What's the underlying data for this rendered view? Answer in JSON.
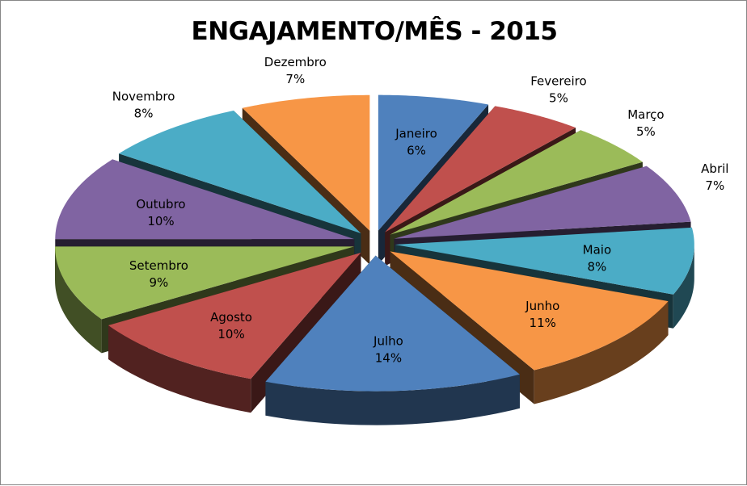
{
  "chart_data": {
    "type": "pie",
    "title": "ENGAJAMENTO/MÊS - 2015",
    "categories": [
      "Janeiro",
      "Fevereiro",
      "Março",
      "Abril",
      "Maio",
      "Junho",
      "Julho",
      "Agosto",
      "Setembro",
      "Outubro",
      "Novembro",
      "Dezembro"
    ],
    "values": [
      6,
      5,
      5,
      7,
      8,
      11,
      14,
      10,
      9,
      10,
      8,
      7
    ],
    "value_labels": [
      "6%",
      "5%",
      "5%",
      "7%",
      "8%",
      "11%",
      "14%",
      "10%",
      "9%",
      "10%",
      "8%",
      "7%"
    ],
    "colors": [
      "#4F81BD",
      "#C0504D",
      "#9BBB59",
      "#8064A2",
      "#4BACC6",
      "#F79646",
      "#4F81BD",
      "#C0504D",
      "#9BBB59",
      "#8064A2",
      "#4BACC6",
      "#F79646"
    ],
    "style": "3d-exploded",
    "legend": "none"
  }
}
